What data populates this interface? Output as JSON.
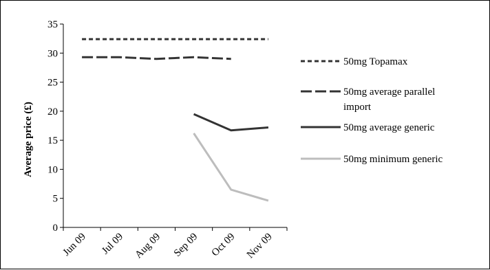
{
  "chart_data": {
    "type": "line",
    "title": "",
    "xlabel": "",
    "ylabel": "Average price (£)",
    "categories": [
      "Jun 09",
      "Jul 09",
      "Aug 09",
      "Sep 09",
      "Oct 09",
      "Nov 09"
    ],
    "ylim": [
      0,
      35
    ],
    "yticks": [
      "0",
      "5",
      "10",
      "15",
      "20",
      "25",
      "30",
      "35"
    ],
    "grid": false,
    "legend_position": "right",
    "series": [
      {
        "name": "50mg Topamax",
        "style": "dotted",
        "color": "#333333",
        "values": [
          32.4,
          32.4,
          32.4,
          32.4,
          32.4,
          32.4
        ]
      },
      {
        "name": "50mg average parallel import",
        "style": "dashed",
        "color": "#333333",
        "values": [
          29.3,
          29.3,
          29.0,
          29.3,
          29.0,
          null
        ]
      },
      {
        "name": "50mg average generic",
        "style": "solid",
        "color": "#333333",
        "values": [
          null,
          null,
          null,
          19.5,
          16.7,
          17.2
        ]
      },
      {
        "name": "50mg minimum generic",
        "style": "solid",
        "color": "#bdbdbd",
        "values": [
          null,
          null,
          null,
          16.2,
          6.5,
          4.6
        ]
      }
    ]
  }
}
